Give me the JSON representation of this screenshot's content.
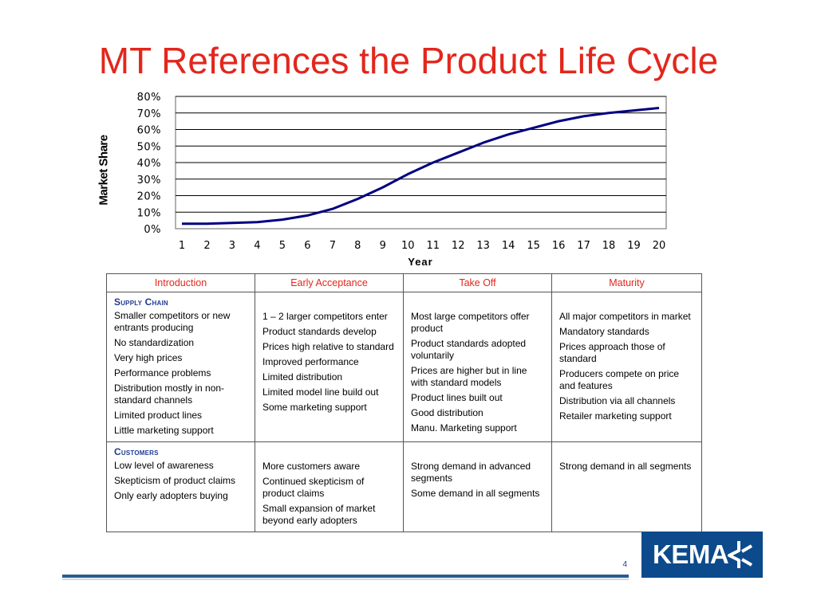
{
  "slide": {
    "title": "MT References the Product Life Cycle",
    "page_number": "4",
    "logo_text": "KEMA"
  },
  "chart_data": {
    "type": "line",
    "title": "",
    "xlabel": "Year",
    "ylabel": "Market Share",
    "x": [
      1,
      2,
      3,
      4,
      5,
      6,
      7,
      8,
      9,
      10,
      11,
      12,
      13,
      14,
      15,
      16,
      17,
      18,
      19,
      20
    ],
    "y_ticks": [
      "0%",
      "10%",
      "20%",
      "30%",
      "40%",
      "50%",
      "60%",
      "70%",
      "80%"
    ],
    "ylim": [
      0,
      80
    ],
    "grid": true,
    "color": "#000080",
    "series": [
      {
        "values": [
          3,
          3,
          3.5,
          4,
          5.5,
          8,
          12,
          18,
          25,
          33,
          40,
          46,
          52,
          57,
          61,
          65,
          68,
          70,
          71.5,
          73
        ]
      }
    ]
  },
  "table": {
    "headers": [
      "Introduction",
      "Early Acceptance",
      "Take Off",
      "Maturity"
    ],
    "sections": [
      {
        "title": "Supply Chain",
        "columns": [
          [
            "Smaller competitors or new entrants producing",
            "No standardization",
            "Very high prices",
            "Performance problems",
            "Distribution mostly in non-standard channels",
            "Limited product lines",
            "Little marketing support"
          ],
          [
            "1 – 2 larger competitors enter",
            "Product standards develop",
            "Prices high relative to standard",
            "Improved performance",
            "Limited distribution",
            "Limited model line build out",
            "Some marketing support"
          ],
          [
            "Most large competitors offer product",
            "Product standards adopted voluntarily",
            "Prices are higher but in line with standard models",
            "Product lines built out",
            "Good distribution",
            "Manu. Marketing support"
          ],
          [
            "All major competitors in market",
            "Mandatory standards",
            "Prices approach those of standard",
            "Producers compete on price and features",
            "Distribution via all channels",
            "Retailer marketing support"
          ]
        ]
      },
      {
        "title": "Customers",
        "columns": [
          [
            "Low level of awareness",
            "Skepticism of product claims",
            "Only early adopters buying"
          ],
          [
            "More customers aware",
            "Continued skepticism of product claims",
            "Small expansion of market beyond early adopters"
          ],
          [
            "Strong demand in advanced segments",
            "Some demand in all segments"
          ],
          [
            "Strong demand in all segments"
          ]
        ]
      }
    ]
  }
}
